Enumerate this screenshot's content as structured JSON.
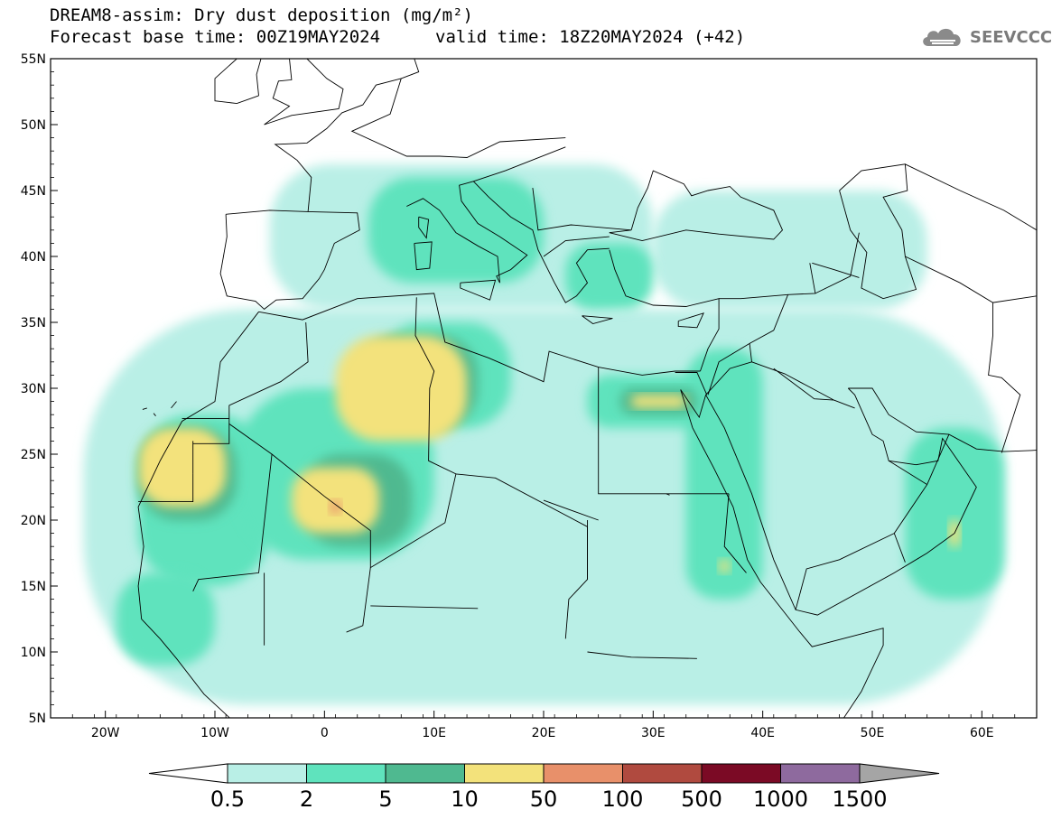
{
  "title": {
    "line1": "DREAM8-assim: Dry dust deposition (mg/m²)",
    "base_time": "Forecast base time: 00Z19MAY2024",
    "valid_time": "valid time: 18Z20MAY2024 (+42)"
  },
  "logo": {
    "text": "SEEVCCC",
    "icon": "cloud-icon"
  },
  "map": {
    "lon_range": [
      -25,
      65
    ],
    "lat_range": [
      5,
      55
    ],
    "lon_ticks": [
      {
        "value": -20,
        "label": "20W"
      },
      {
        "value": -10,
        "label": "10W"
      },
      {
        "value": 0,
        "label": "0"
      },
      {
        "value": 10,
        "label": "10E"
      },
      {
        "value": 20,
        "label": "20E"
      },
      {
        "value": 30,
        "label": "30E"
      },
      {
        "value": 40,
        "label": "40E"
      },
      {
        "value": 50,
        "label": "50E"
      },
      {
        "value": 60,
        "label": "60E"
      }
    ],
    "lat_ticks": [
      {
        "value": 55,
        "label": "55N"
      },
      {
        "value": 50,
        "label": "50N"
      },
      {
        "value": 45,
        "label": "45N"
      },
      {
        "value": 40,
        "label": "40N"
      },
      {
        "value": 35,
        "label": "35N"
      },
      {
        "value": 30,
        "label": "30N"
      },
      {
        "value": 25,
        "label": "25N"
      },
      {
        "value": 20,
        "label": "20N"
      },
      {
        "value": 15,
        "label": "15N"
      },
      {
        "value": 10,
        "label": "10N"
      },
      {
        "value": 5,
        "label": "5N"
      }
    ]
  },
  "colorbar": {
    "labels": [
      "0.5",
      "2",
      "5",
      "10",
      "50",
      "100",
      "500",
      "1000",
      "1500"
    ],
    "colors": [
      "#b9efe6",
      "#5fe3bd",
      "#4fb990",
      "#f3e27b",
      "#e8906a",
      "#b04a3f",
      "#7b0a25",
      "#8e6a9e"
    ],
    "under_color": "#ffffff",
    "over_color": "#a5a5a5"
  },
  "deposition_regions": [
    {
      "level": 0,
      "lon": [
        -22,
        62
      ],
      "lat": [
        6,
        36
      ],
      "note": "background"
    },
    {
      "level": 0,
      "lon": [
        -5,
        30
      ],
      "lat": [
        36,
        47
      ]
    },
    {
      "level": 0,
      "lon": [
        30,
        55
      ],
      "lat": [
        36,
        45
      ]
    },
    {
      "level": 1,
      "lon": [
        -17,
        -5
      ],
      "lat": [
        15,
        28
      ]
    },
    {
      "level": 1,
      "lon": [
        -8,
        10
      ],
      "lat": [
        17,
        30
      ]
    },
    {
      "level": 1,
      "lon": [
        5,
        17
      ],
      "lat": [
        27,
        35
      ]
    },
    {
      "level": 1,
      "lon": [
        24,
        38
      ],
      "lat": [
        27,
        31
      ]
    },
    {
      "level": 1,
      "lon": [
        33,
        40
      ],
      "lat": [
        14,
        33
      ]
    },
    {
      "level": 1,
      "lon": [
        -19,
        -10
      ],
      "lat": [
        9,
        16
      ]
    },
    {
      "level": 1,
      "lon": [
        53,
        62
      ],
      "lat": [
        14,
        27
      ]
    },
    {
      "level": 1,
      "lon": [
        4,
        20
      ],
      "lat": [
        38,
        46
      ]
    },
    {
      "level": 1,
      "lon": [
        22,
        30
      ],
      "lat": [
        36,
        41
      ]
    },
    {
      "level": 2,
      "lon": [
        -17,
        -8
      ],
      "lat": [
        20,
        27
      ]
    },
    {
      "level": 2,
      "lon": [
        -2,
        8
      ],
      "lat": [
        18,
        25
      ]
    },
    {
      "level": 2,
      "lon": [
        3,
        14
      ],
      "lat": [
        27,
        34
      ]
    },
    {
      "level": 2,
      "lon": [
        27,
        34
      ],
      "lat": [
        28,
        30
      ]
    },
    {
      "level": 3,
      "lon": [
        -17,
        -9
      ],
      "lat": [
        21,
        27
      ]
    },
    {
      "level": 3,
      "lon": [
        -3,
        5
      ],
      "lat": [
        19,
        24
      ]
    },
    {
      "level": 3,
      "lon": [
        1,
        13
      ],
      "lat": [
        26,
        34
      ]
    },
    {
      "level": 3,
      "lon": [
        28,
        33
      ],
      "lat": [
        28.5,
        29.5
      ]
    },
    {
      "level": 3,
      "lon": [
        36,
        37
      ],
      "lat": [
        16,
        17
      ]
    },
    {
      "level": 3,
      "lon": [
        57,
        58
      ],
      "lat": [
        18,
        20
      ]
    },
    {
      "level": 4,
      "lon": [
        0.5,
        1.5
      ],
      "lat": [
        20.5,
        21.5
      ]
    }
  ]
}
